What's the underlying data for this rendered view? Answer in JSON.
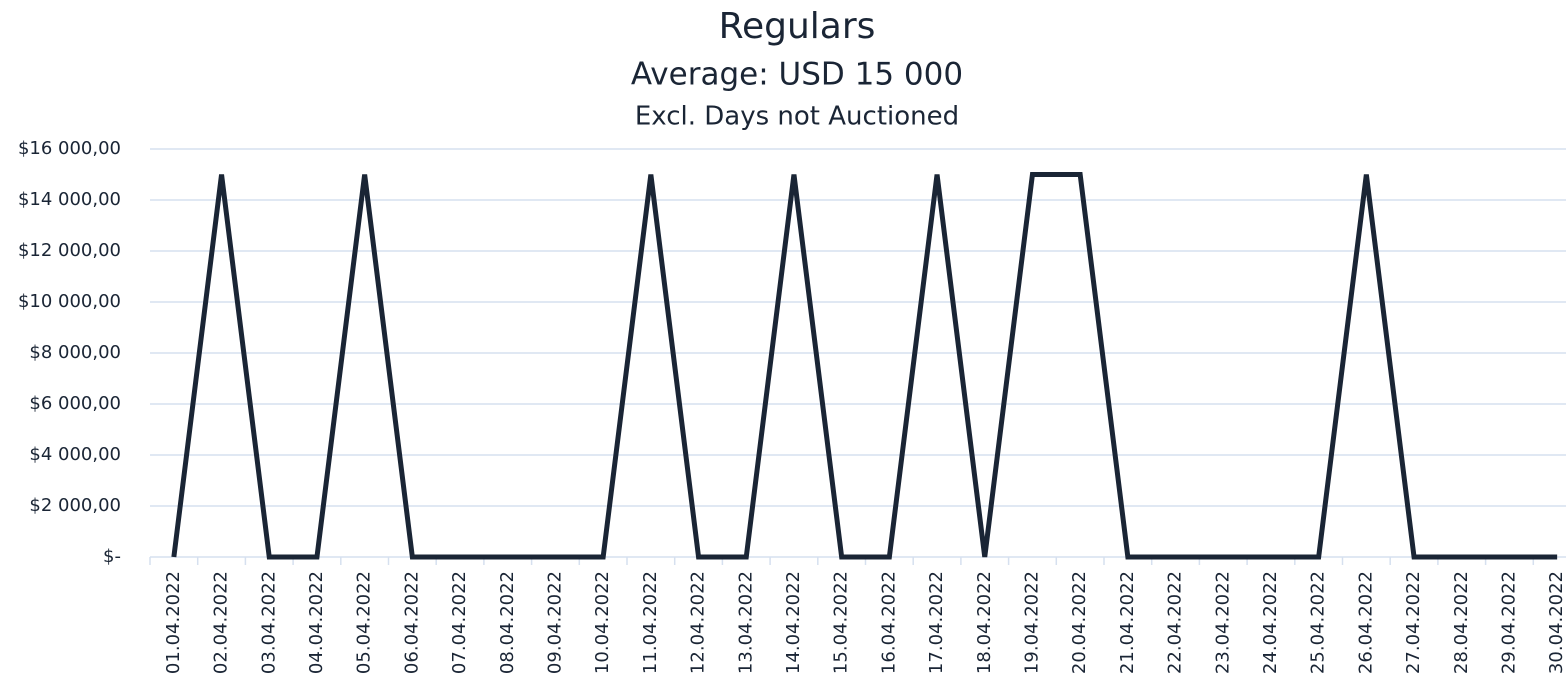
{
  "chart_data": {
    "type": "line",
    "title": "Regulars",
    "subtitle": "Average: USD 15 000",
    "annotation": "Excl. Days not Auctioned",
    "categories": [
      "01.04.2022",
      "02.04.2022",
      "03.04.2022",
      "04.04.2022",
      "05.04.2022",
      "06.04.2022",
      "07.04.2022",
      "08.04.2022",
      "09.04.2022",
      "10.04.2022",
      "11.04.2022",
      "12.04.2022",
      "13.04.2022",
      "14.04.2022",
      "15.04.2022",
      "16.04.2022",
      "17.04.2022",
      "18.04.2022",
      "19.04.2022",
      "20.04.2022",
      "21.04.2022",
      "22.04.2022",
      "23.04.2022",
      "24.04.2022",
      "25.04.2022",
      "26.04.2022",
      "27.04.2022",
      "28.04.2022",
      "29.04.2022",
      "30.04.2022"
    ],
    "series": [
      {
        "name": "Regulars",
        "color": "#1a2535",
        "values": [
          0,
          15000,
          0,
          0,
          15000,
          0,
          0,
          0,
          0,
          0,
          15000,
          0,
          0,
          15000,
          0,
          0,
          15000,
          0,
          15000,
          15000,
          0,
          0,
          0,
          0,
          0,
          15000,
          0,
          0,
          0,
          0
        ]
      }
    ],
    "ylim": [
      0,
      16000
    ],
    "yticks": [
      {
        "value": 0,
        "label": "$-"
      },
      {
        "value": 2000,
        "label": "$2 000,00"
      },
      {
        "value": 4000,
        "label": "$4 000,00"
      },
      {
        "value": 6000,
        "label": "$6 000,00"
      },
      {
        "value": 8000,
        "label": "$8 000,00"
      },
      {
        "value": 10000,
        "label": "$10 000,00"
      },
      {
        "value": 12000,
        "label": "$12 000,00"
      },
      {
        "value": 14000,
        "label": "$14 000,00"
      },
      {
        "value": 16000,
        "label": "$16 000,00"
      }
    ],
    "grid": true,
    "grid_color": "#d6e0ef"
  }
}
